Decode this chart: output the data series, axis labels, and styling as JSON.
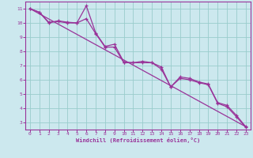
{
  "xlabel": "Windchill (Refroidissement éolien,°C)",
  "background_color": "#cce8ee",
  "line_color": "#993399",
  "grid_color": "#99cccc",
  "xlim": [
    -0.5,
    23.5
  ],
  "ylim": [
    2.5,
    11.5
  ],
  "xticks": [
    0,
    1,
    2,
    3,
    4,
    5,
    6,
    7,
    8,
    9,
    10,
    11,
    12,
    13,
    14,
    15,
    16,
    17,
    18,
    19,
    20,
    21,
    22,
    23
  ],
  "yticks": [
    3,
    4,
    5,
    6,
    7,
    8,
    9,
    10,
    11
  ],
  "line1_x": [
    0,
    1,
    2,
    3,
    4,
    5,
    6,
    7,
    8,
    9,
    10,
    11,
    12,
    13,
    14,
    15,
    16,
    17,
    18,
    19,
    20,
    21,
    22,
    23
  ],
  "line1_y": [
    11.0,
    10.75,
    10.0,
    10.15,
    10.05,
    10.0,
    11.2,
    9.3,
    8.35,
    8.5,
    7.25,
    7.2,
    7.3,
    7.2,
    6.9,
    5.5,
    6.2,
    6.1,
    5.85,
    5.7,
    4.4,
    4.2,
    3.5,
    2.7
  ],
  "line2_x": [
    0,
    1,
    2,
    3,
    4,
    5,
    6,
    7,
    8,
    9,
    10,
    11,
    12,
    13,
    14,
    15,
    16,
    17,
    18,
    19,
    20,
    21,
    22,
    23
  ],
  "line2_y": [
    11.0,
    10.75,
    10.05,
    10.1,
    10.0,
    10.0,
    10.3,
    9.25,
    8.3,
    8.3,
    7.2,
    7.2,
    7.2,
    7.2,
    6.75,
    5.5,
    6.1,
    6.0,
    5.8,
    5.65,
    4.35,
    4.1,
    3.4,
    2.65
  ],
  "line3_x": [
    0,
    23
  ],
  "line3_y": [
    11.0,
    2.7
  ]
}
